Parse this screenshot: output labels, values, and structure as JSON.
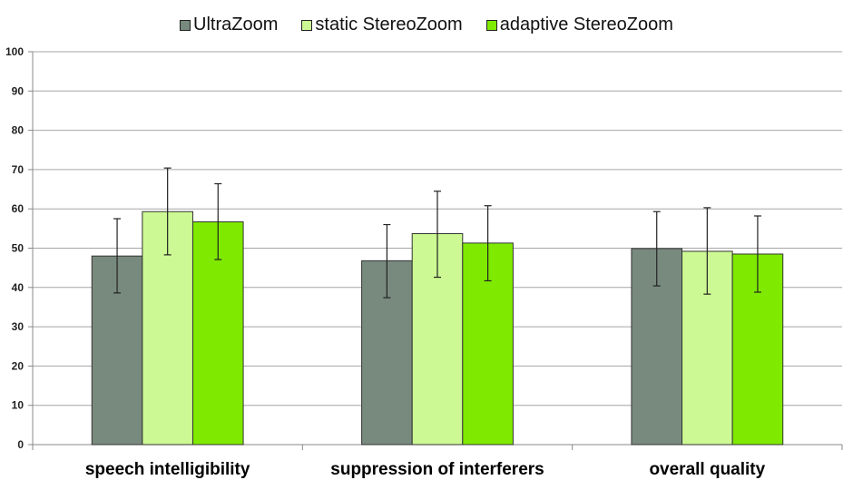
{
  "chart_data": {
    "type": "bar",
    "title": "",
    "xlabel": "",
    "ylabel": "",
    "categories": [
      "speech intelligibility",
      "suppression of interferers",
      "overall quality"
    ],
    "series": [
      {
        "name": "UltraZoom",
        "color": "#788a7e",
        "values": [
          48.0,
          46.8,
          49.9
        ],
        "error_low": [
          38.6,
          37.4,
          40.4
        ],
        "error_high": [
          57.5,
          56.0,
          59.3
        ]
      },
      {
        "name": "static StereoZoom",
        "color": "#ccf993",
        "values": [
          59.3,
          53.7,
          49.2
        ],
        "error_low": [
          48.3,
          42.6,
          38.3
        ],
        "error_high": [
          70.4,
          64.5,
          60.3
        ]
      },
      {
        "name": "adaptive StereoZoom",
        "color": "#7fea00",
        "values": [
          56.7,
          51.3,
          48.5
        ],
        "error_low": [
          47.1,
          41.7,
          38.8
        ],
        "error_high": [
          66.4,
          60.8,
          58.2
        ]
      }
    ],
    "ylim": [
      0,
      100
    ],
    "yticks": [
      0,
      10,
      20,
      30,
      40,
      50,
      60,
      70,
      80,
      90,
      100
    ],
    "grid": true,
    "legend_position": "top-center"
  }
}
